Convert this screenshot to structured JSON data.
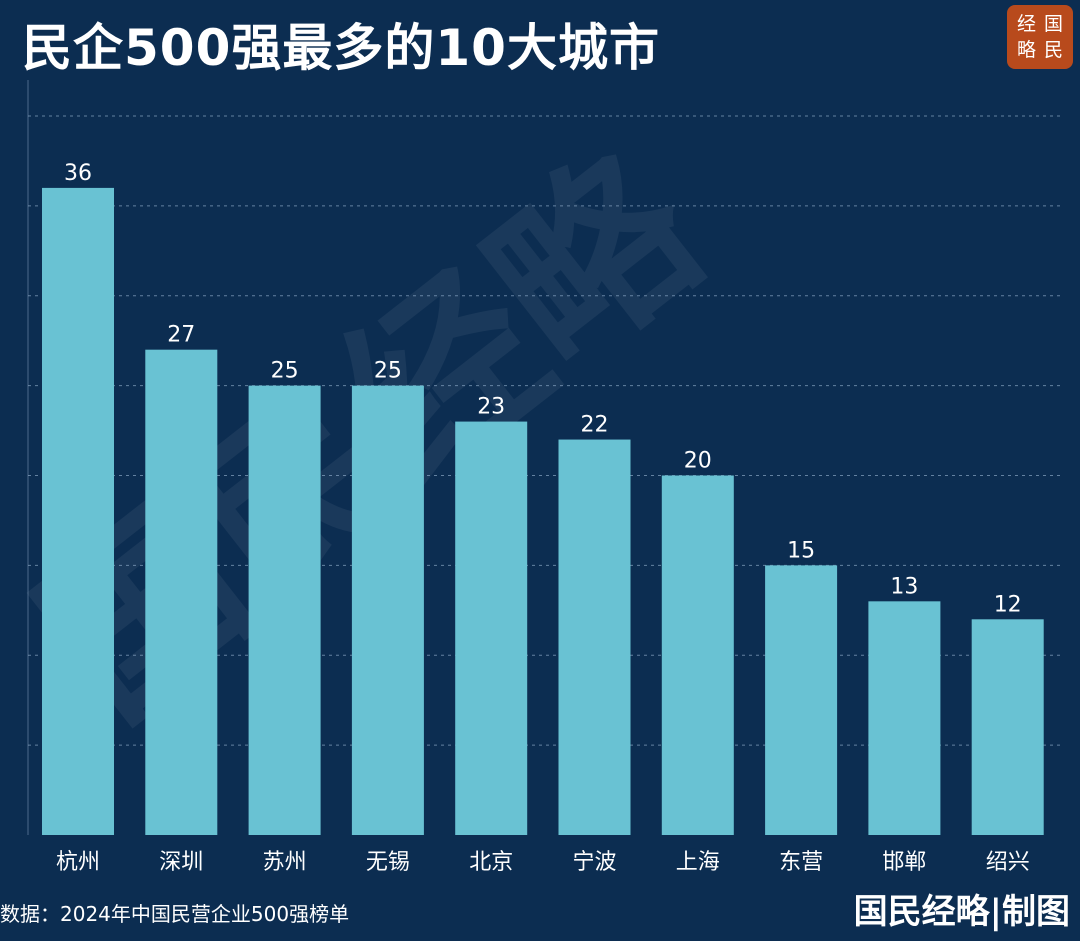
{
  "title": "民企500强最多的10大城市",
  "logo": {
    "chars": [
      "经",
      "国",
      "略",
      "民"
    ]
  },
  "watermark": "国民经略",
  "source": "数据：2024年中国民营企业500强榜单",
  "brand": "国民经略|制图",
  "colors": {
    "background": "#0c2d51",
    "bar": "#69c2d3",
    "grid": "#8aa6c4",
    "text": "#ffffff",
    "logo": "#b84a1c"
  },
  "chart_data": {
    "type": "bar",
    "title": "民企500强最多的10大城市",
    "categories": [
      "杭州",
      "深圳",
      "苏州",
      "无锡",
      "北京",
      "宁波",
      "上海",
      "东营",
      "邯郸",
      "绍兴"
    ],
    "values": [
      36,
      27,
      25,
      25,
      23,
      22,
      20,
      15,
      13,
      12
    ],
    "ylim": [
      0,
      40
    ],
    "grid_step": 5,
    "grid": true,
    "data_labels": true,
    "xlabel": "",
    "ylabel": ""
  }
}
